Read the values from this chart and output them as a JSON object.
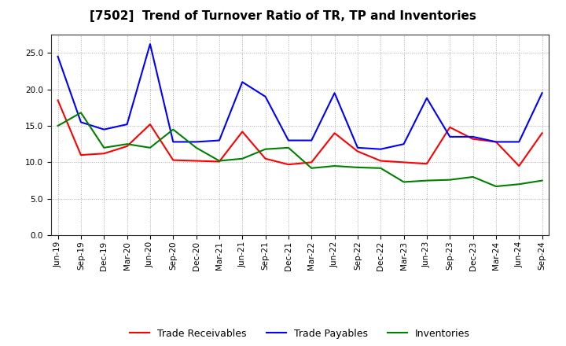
{
  "title": "[7502]  Trend of Turnover Ratio of TR, TP and Inventories",
  "xlabel": "",
  "ylabel": "",
  "ylim": [
    0.0,
    27.5
  ],
  "yticks": [
    0.0,
    5.0,
    10.0,
    15.0,
    20.0,
    25.0
  ],
  "x_labels": [
    "Jun-19",
    "Sep-19",
    "Dec-19",
    "Mar-20",
    "Jun-20",
    "Sep-20",
    "Dec-20",
    "Mar-21",
    "Jun-21",
    "Sep-21",
    "Dec-21",
    "Mar-22",
    "Jun-22",
    "Sep-22",
    "Dec-22",
    "Mar-23",
    "Jun-23",
    "Sep-23",
    "Dec-23",
    "Mar-24",
    "Jun-24",
    "Sep-24"
  ],
  "trade_receivables": [
    18.5,
    11.0,
    11.2,
    12.2,
    15.2,
    10.3,
    10.2,
    10.1,
    14.2,
    10.5,
    9.7,
    10.0,
    14.0,
    11.5,
    10.2,
    10.0,
    9.8,
    14.8,
    13.2,
    12.8,
    9.5,
    14.0
  ],
  "trade_payables": [
    24.5,
    15.5,
    14.5,
    15.2,
    26.2,
    12.8,
    12.8,
    13.0,
    21.0,
    19.0,
    13.0,
    13.0,
    19.5,
    12.0,
    11.8,
    12.5,
    18.8,
    13.5,
    13.5,
    12.8,
    12.8,
    19.5
  ],
  "inventories": [
    15.0,
    16.8,
    12.0,
    12.5,
    12.0,
    14.5,
    12.0,
    10.2,
    10.5,
    11.8,
    12.0,
    9.2,
    9.5,
    9.3,
    9.2,
    7.3,
    7.5,
    7.6,
    8.0,
    6.7,
    7.0,
    7.5
  ],
  "tr_color": "#FF0000",
  "tp_color": "#0000FF",
  "inv_color": "#008000",
  "tr_label": "Trade Receivables",
  "tp_label": "Trade Payables",
  "inv_label": "Inventories",
  "bg_color": "#FFFFFF",
  "plot_bg_color": "#FFFFFF",
  "grid_color": "#AAAAAA",
  "title_fontsize": 11,
  "legend_fontsize": 9,
  "tick_fontsize": 7.5
}
